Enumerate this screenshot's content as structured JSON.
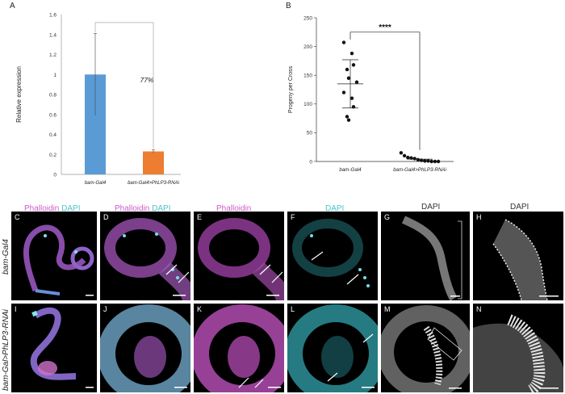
{
  "panel_letters": {
    "A": "A",
    "B": "B",
    "C": "C",
    "D": "D",
    "E": "E",
    "F": "F",
    "G": "G",
    "H": "H",
    "I": "I",
    "J": "J",
    "K": "K",
    "L": "L",
    "M": "M",
    "N": "N"
  },
  "column_headers": {
    "c_phalloidin": "Phalloidin",
    "c_dapi": "DAPI",
    "d_phalloidin": "Phalloidin",
    "d_dapi": "DAPI",
    "e_phalloidin": "Phalloidin",
    "f_dapi": "DAPI",
    "g_dapi": "DAPI",
    "h_dapi": "DAPI"
  },
  "row_labels": {
    "top": "bam-Gal4",
    "bottom": "bam-Gal>PhLP3-RNAi"
  },
  "colors": {
    "phalloidin": "#d05ac8",
    "dapi": "#48c4cc",
    "bar_control": "#5b9bd5",
    "bar_rnai": "#ed7d31"
  },
  "chart_data": [
    {
      "type": "bar",
      "panel": "A",
      "categories": [
        "bam-Gal4",
        "bam-Gal4>PhLP3-RNAi"
      ],
      "values": [
        1.0,
        0.23
      ],
      "error": [
        0.41,
        0.015
      ],
      "ylabel": "Relative expression",
      "ylim": [
        0,
        1.6
      ],
      "yticks": [
        "0",
        "0.2",
        "0.4",
        "0.6",
        "0.8",
        "1",
        "1.2",
        "1.4",
        "1.6"
      ],
      "annotation": "77%"
    },
    {
      "type": "scatter",
      "panel": "B",
      "categories": [
        "bam-Gal4",
        "bam-Gal4>PhLP3-RNAi"
      ],
      "ylabel": "Progeny per Cross",
      "ylim": [
        0,
        250
      ],
      "yticks": [
        "0",
        "50",
        "100",
        "150",
        "200",
        "250"
      ],
      "groups": [
        {
          "category": "bam-Gal4",
          "points": [
            207,
            188,
            168,
            160,
            145,
            138,
            120,
            110,
            95,
            78,
            72
          ],
          "mean": 135,
          "sd_upper": 177,
          "sd_lower": 93
        },
        {
          "category": "bam-Gal4>PhLP3-RNAi",
          "points": [
            15,
            10,
            7,
            6,
            5,
            3,
            2,
            1,
            1,
            0,
            0,
            0
          ],
          "mean": 4
        }
      ],
      "significance": "****"
    }
  ]
}
